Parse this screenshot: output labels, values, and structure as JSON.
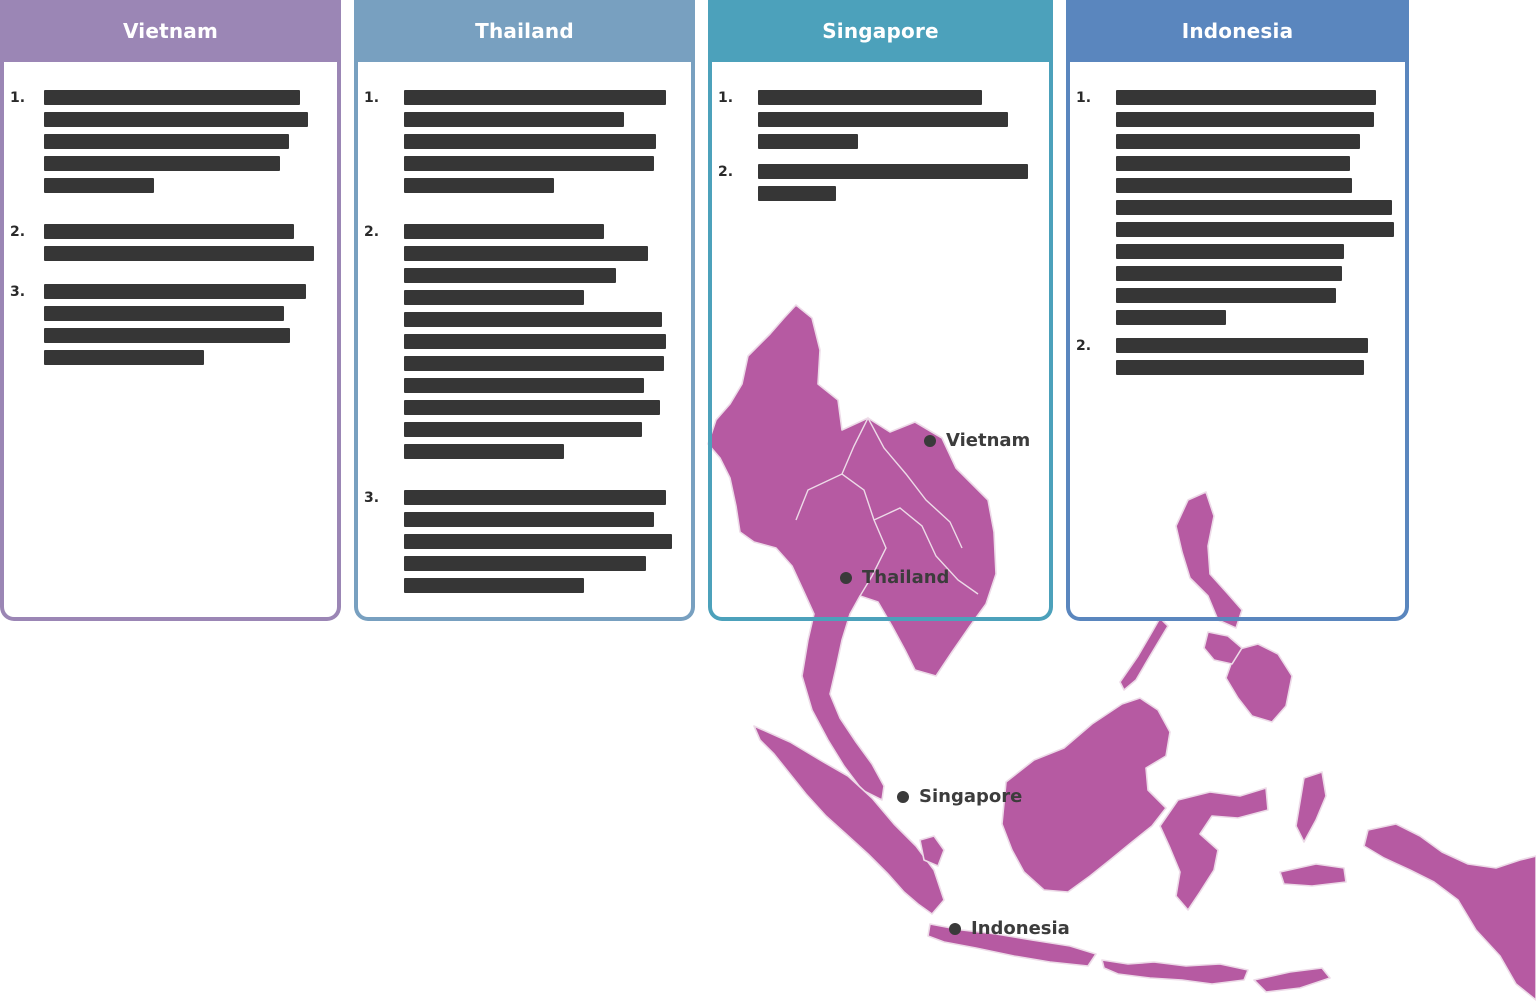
{
  "colors": {
    "map_fill": "#b65aa2",
    "map_stroke": "#eddbe8",
    "card_text_placeholder": "#363636"
  },
  "cards": [
    {
      "title": "Vietnam",
      "header_color": "#9b86b5",
      "border_color": "#9b86b5",
      "items": [
        {
          "number": "1."
        },
        {
          "number": "2."
        },
        {
          "number": "3."
        }
      ]
    },
    {
      "title": "Thailand",
      "header_color": "#78a0c0",
      "border_color": "#78a0c0",
      "items": [
        {
          "number": "1."
        },
        {
          "number": "2."
        },
        {
          "number": "3."
        }
      ]
    },
    {
      "title": "Singapore",
      "header_color": "#4ca1bb",
      "border_color": "#4ca1bb",
      "items": [
        {
          "number": "1."
        },
        {
          "number": "2."
        }
      ]
    },
    {
      "title": "Indonesia",
      "header_color": "#5a86be",
      "border_color": "#5a86be",
      "items": [
        {
          "number": "1."
        },
        {
          "number": "2."
        }
      ]
    }
  ],
  "map": {
    "labels": [
      {
        "name": "Vietnam"
      },
      {
        "name": "Thailand"
      },
      {
        "name": "Singapore"
      },
      {
        "name": "Indonesia"
      }
    ]
  }
}
